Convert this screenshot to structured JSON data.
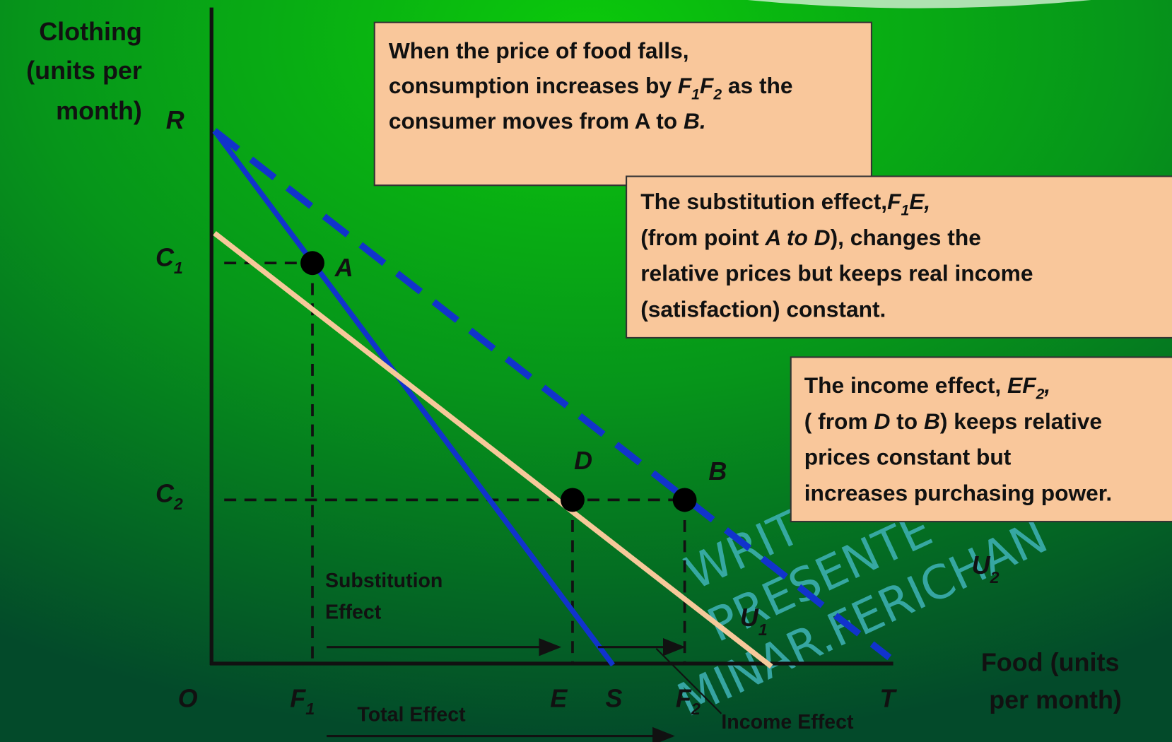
{
  "axes": {
    "y_label": [
      "Clothing",
      "(units per",
      "month)"
    ],
    "x_label": [
      "Food (units",
      "per month)"
    ],
    "origin": "O",
    "R": "R",
    "C1": [
      "C",
      "1"
    ],
    "C2": [
      "C",
      "2"
    ],
    "F1": [
      "F",
      "1"
    ],
    "E": "E",
    "S": "S",
    "F2": [
      "F",
      "2"
    ],
    "T": "T"
  },
  "points": {
    "A": "A",
    "B": "B",
    "D": "D"
  },
  "curves": {
    "U1": [
      "U",
      "1"
    ],
    "U2": [
      "U",
      "2"
    ]
  },
  "effects": {
    "substitution": [
      "Substitution",
      "Effect"
    ],
    "total": "Total Effect",
    "income": "Income Effect"
  },
  "box1": {
    "line1": "When the price of food falls,",
    "line2": [
      "consumption increases by ",
      "F",
      "1",
      "F",
      "2",
      " as the"
    ],
    "line3": [
      "consumer moves from  A to ",
      "B."
    ]
  },
  "box2": {
    "line1": [
      "The substitution effect,",
      "F",
      "1",
      "E,"
    ],
    "line2": [
      "(from point ",
      "A to D",
      "),  changes the"
    ],
    "line3": "relative prices but keeps real income",
    "line4": "(satisfaction) constant."
  },
  "box3": {
    "line1": [
      "The income effect, ",
      "EF",
      "2",
      ","
    ],
    "line2": [
      "( from ",
      "D",
      " to ",
      "B",
      ") keeps relative"
    ],
    "line3": "prices constant but",
    "line4": "increases purchasing power."
  },
  "watermark": [
    "WRIT",
    "PRESENTE",
    "MINAR.FERICHAN"
  ]
}
